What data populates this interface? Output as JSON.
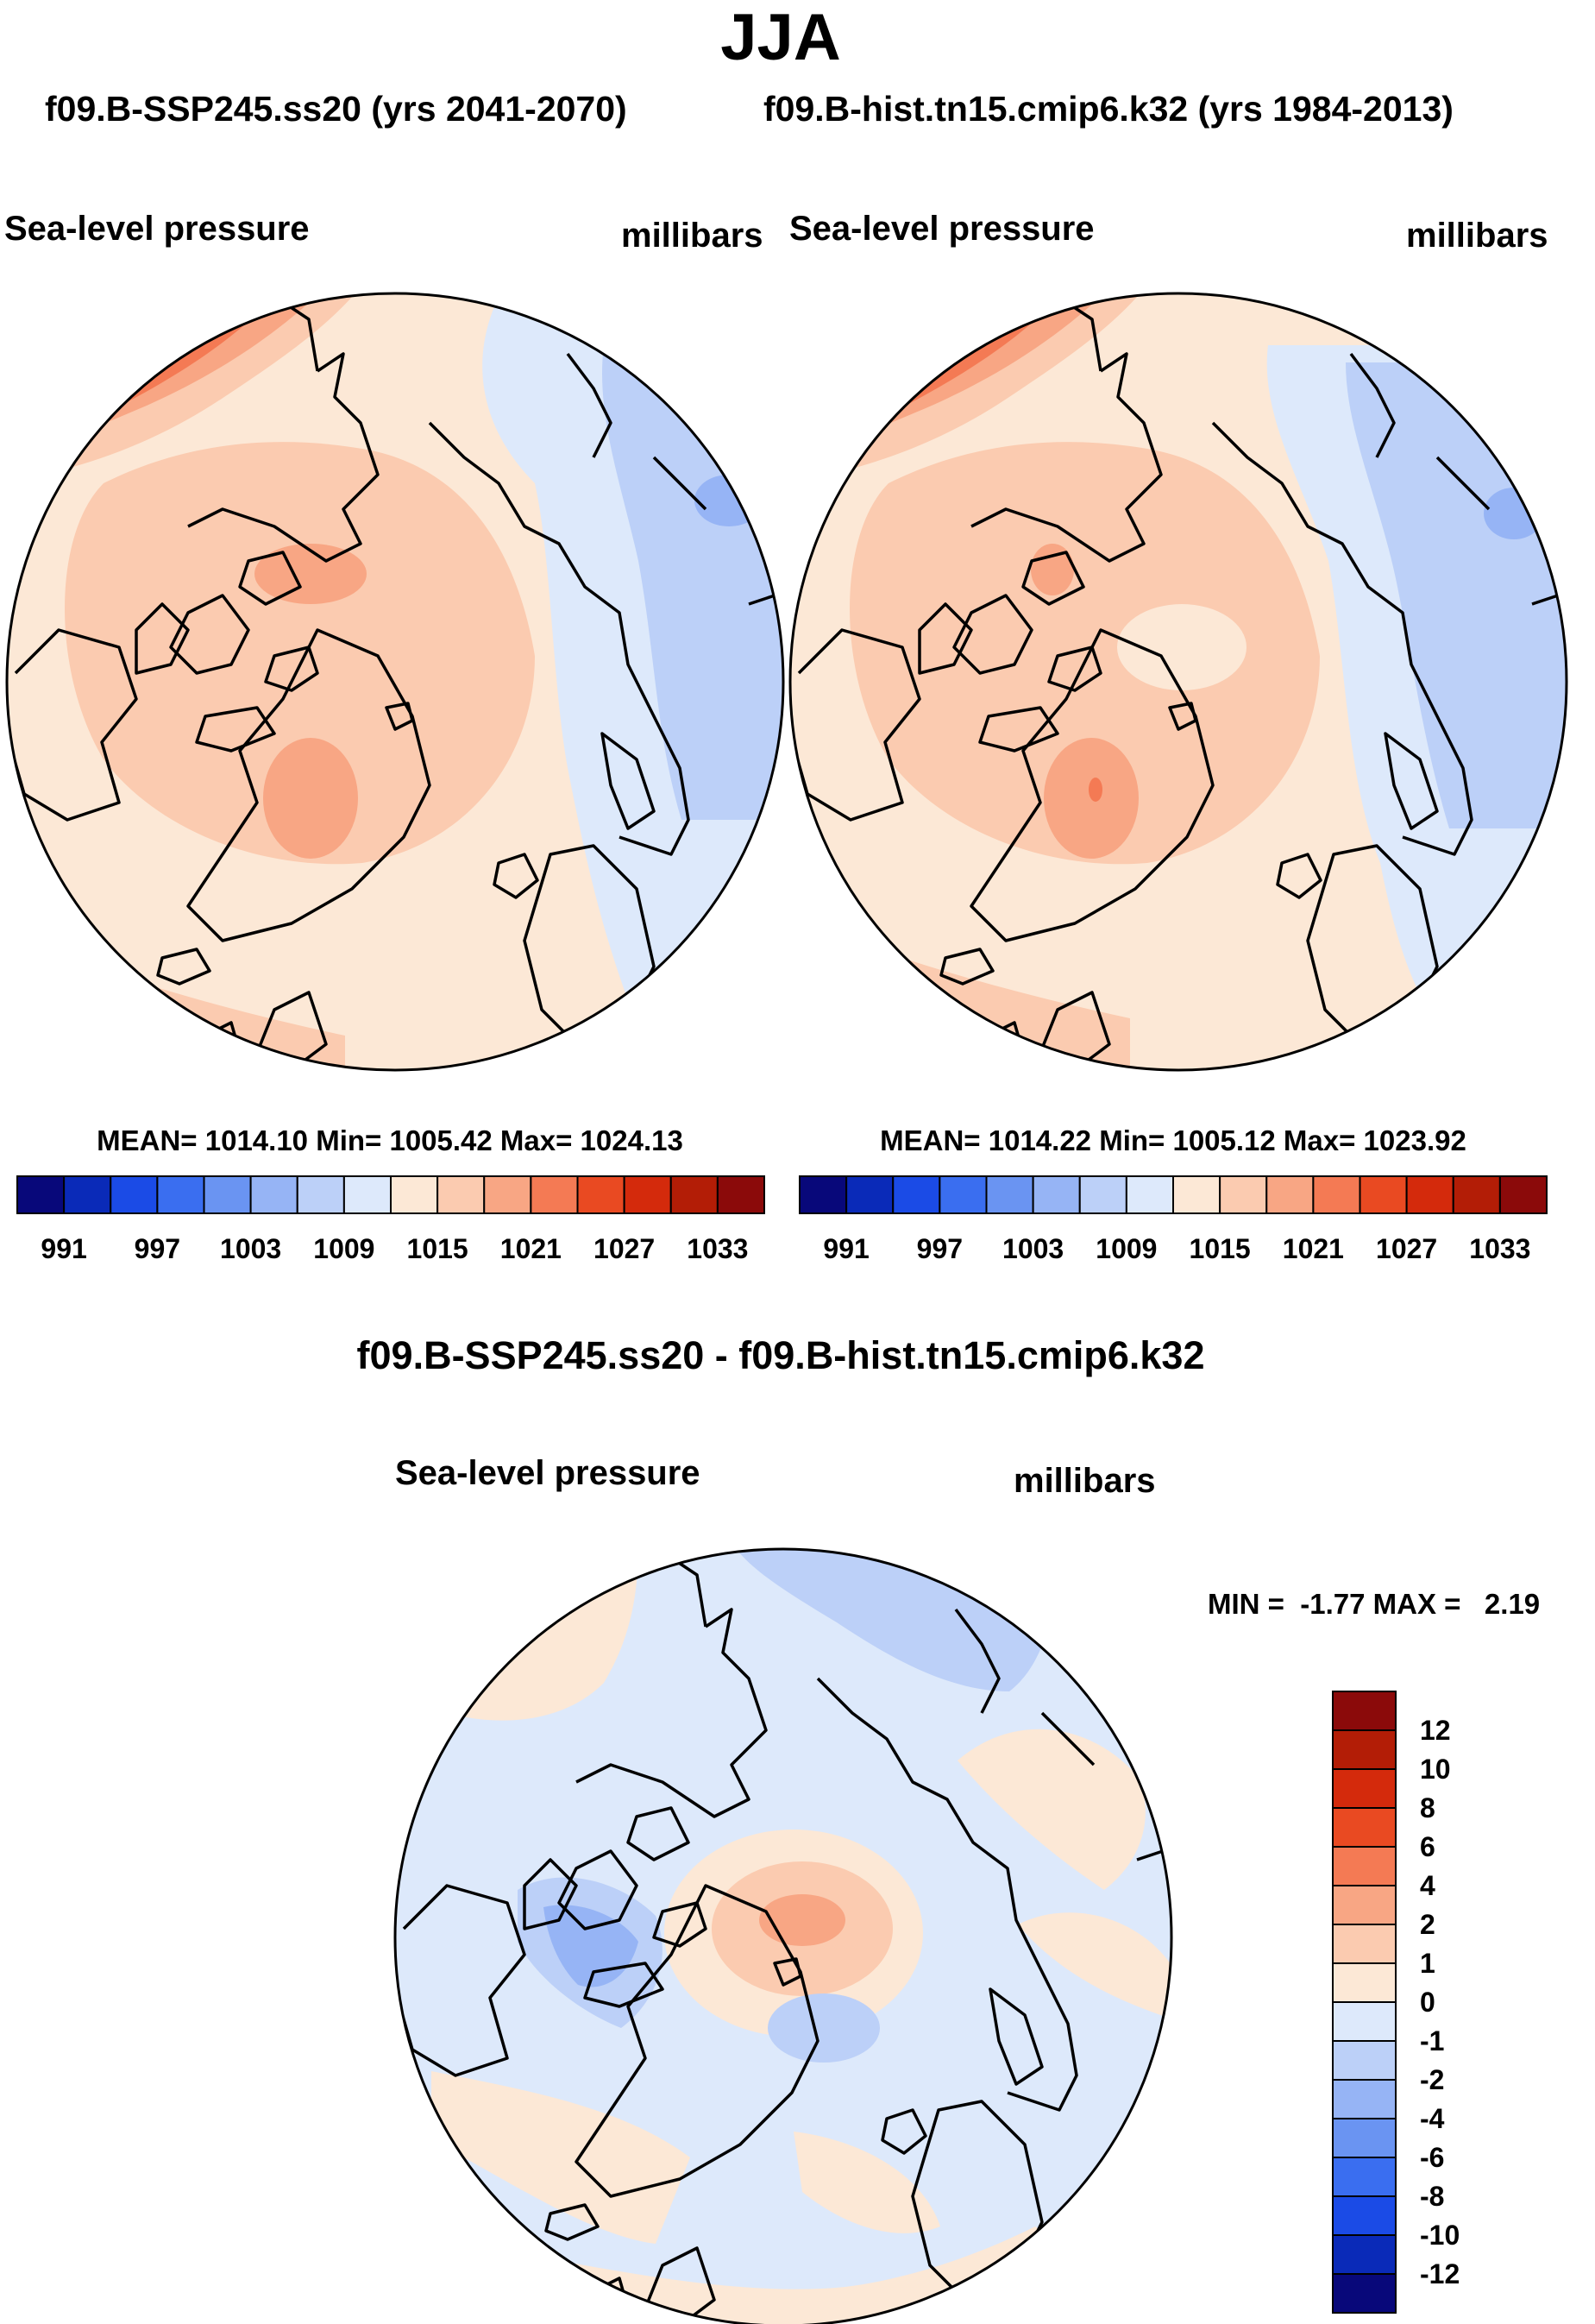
{
  "page": {
    "season": "JJA",
    "subtitle_left": "f09.B-SSP245.ss20 (yrs 2041-2070)",
    "subtitle_right": "f09.B-hist.tn15.cmip6.k32 (yrs 1984-2013)",
    "diff_title": "f09.B-SSP245.ss20 - f09.B-hist.tn15.cmip6.k32"
  },
  "panels": [
    {
      "variable": "Sea-level pressure",
      "units": "millibars",
      "stats": "MEAN= 1014.10  Min= 1005.42  Max= 1024.13"
    },
    {
      "variable": "Sea-level pressure",
      "units": "millibars",
      "stats": "MEAN= 1014.22  Min= 1005.12  Max= 1023.92"
    }
  ],
  "diff_panel": {
    "variable": "Sea-level pressure",
    "units": "millibars",
    "stats": "MIN =  -1.77 MAX =   2.19"
  },
  "colorbar_abs": {
    "colors": [
      "#08087a",
      "#0a2ab8",
      "#1b4be6",
      "#3a6ef0",
      "#6a94f2",
      "#96b4f5",
      "#bcd0f8",
      "#dde9fb",
      "#fce8d6",
      "#fbcbb0",
      "#f8a684",
      "#f47a54",
      "#e94a22",
      "#d42a0c",
      "#b31d06",
      "#8b0a0a"
    ],
    "labels": [
      "991",
      "997",
      "1003",
      "1009",
      "1015",
      "1021",
      "1027",
      "1033"
    ]
  },
  "colorbar_diff": {
    "colors": [
      "#08087a",
      "#0a2ab8",
      "#1b4be6",
      "#3a6ef0",
      "#6a94f2",
      "#96b4f5",
      "#bcd0f8",
      "#dde9fb",
      "#fce8d6",
      "#fbcbb0",
      "#f8a684",
      "#f47a54",
      "#e94a22",
      "#d42a0c",
      "#b31d06",
      "#8b0a0a"
    ],
    "labels": [
      "12",
      "10",
      "8",
      "6",
      "4",
      "2",
      "1",
      "0",
      "-1",
      "-2",
      "-4",
      "-6",
      "-8",
      "-10",
      "-12"
    ]
  }
}
